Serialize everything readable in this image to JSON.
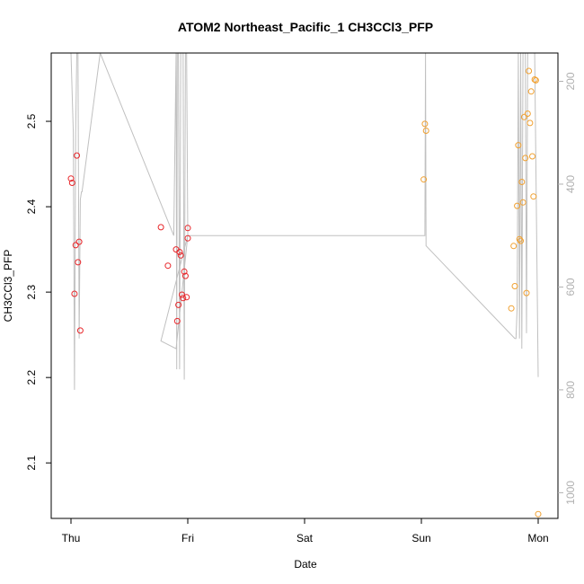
{
  "chart_data": {
    "type": "scatter",
    "title": "ATOM2 Northeast_Pacific_1 CH3CCl3_PFP",
    "xlabel": "Date",
    "ylabel": "CH3CCl3_PFP",
    "x_ticks": [
      "Thu",
      "Fri",
      "Sat",
      "Sun",
      "Mon"
    ],
    "xlim_days": [
      -0.2,
      4.17
    ],
    "ylim": [
      2.035,
      2.58
    ],
    "y_ticks": [
      2.1,
      2.2,
      2.3,
      2.4,
      2.5
    ],
    "y_tick_labels": [
      "2.1",
      "2.2",
      "2.3",
      "2.4",
      "2.5"
    ],
    "right_axis": {
      "label": "",
      "range": [
        1050,
        145
      ],
      "ticks": [
        200,
        400,
        600,
        800,
        1000
      ],
      "tick_labels": [
        "200",
        "400",
        "600",
        "800",
        "1000"
      ],
      "color": "#b0b0b0"
    },
    "colors": {
      "red_series": "#e8262a",
      "orange_series": "#f0a030",
      "line": "#c0c0c0"
    },
    "series": [
      {
        "color": "red",
        "x": [
          0.0,
          0.01,
          0.03,
          0.04,
          0.05,
          0.06,
          0.07,
          0.08,
          0.77,
          0.83,
          0.9,
          0.91,
          0.92,
          0.93,
          0.94,
          0.95,
          0.96,
          0.97,
          0.98,
          0.99,
          1.0,
          1.0
        ],
        "y": [
          2.433,
          2.428,
          2.298,
          2.355,
          2.46,
          2.335,
          2.359,
          2.255,
          2.376,
          2.331,
          2.35,
          2.266,
          2.285,
          2.347,
          2.343,
          2.297,
          2.293,
          2.324,
          2.319,
          2.294,
          2.363,
          2.375
        ]
      },
      {
        "color": "orange",
        "x": [
          3.02,
          3.03,
          3.04,
          3.77,
          3.79,
          3.8,
          3.82,
          3.83,
          3.84,
          3.85,
          3.86,
          3.87,
          3.88,
          3.89,
          3.9,
          3.91,
          3.92,
          3.93,
          3.94,
          3.95,
          3.96,
          3.97,
          3.98,
          4.0
        ],
        "y": [
          2.432,
          2.497,
          2.489,
          2.281,
          2.354,
          2.307,
          2.401,
          2.472,
          2.362,
          2.36,
          2.429,
          2.405,
          2.505,
          2.457,
          2.299,
          2.509,
          2.559,
          2.498,
          2.535,
          2.459,
          2.412,
          2.549,
          2.548,
          2.04
        ]
      }
    ],
    "altitude_line": {
      "x": [
        0.0,
        0.02,
        0.03,
        0.04,
        0.05,
        0.06,
        0.07,
        0.08,
        0.09,
        0.095,
        0.25,
        0.88,
        0.9,
        0.905,
        0.91,
        0.92,
        0.93,
        0.94,
        0.95,
        0.96,
        0.97,
        0.98,
        0.99,
        1.0,
        1.0,
        0.77,
        0.9,
        1.0,
        3.03,
        3.035,
        3.04,
        3.8,
        3.81,
        3.82,
        3.83,
        3.84,
        3.85,
        3.86,
        3.87,
        3.88,
        3.89,
        3.9,
        3.91,
        3.92,
        3.93,
        3.94,
        3.95,
        3.96,
        3.97,
        4.0
      ],
      "y": [
        145,
        300,
        800,
        300,
        145,
        145,
        700,
        430,
        415,
        415,
        145,
        500,
        145,
        760,
        145,
        145,
        760,
        145,
        145,
        145,
        780,
        145,
        145,
        500,
        500,
        705,
        720,
        500,
        500,
        145,
        520,
        700,
        700,
        640,
        145,
        700,
        145,
        720,
        145,
        145,
        145,
        690,
        145,
        145,
        145,
        145,
        145,
        145,
        145,
        775
      ]
    }
  }
}
